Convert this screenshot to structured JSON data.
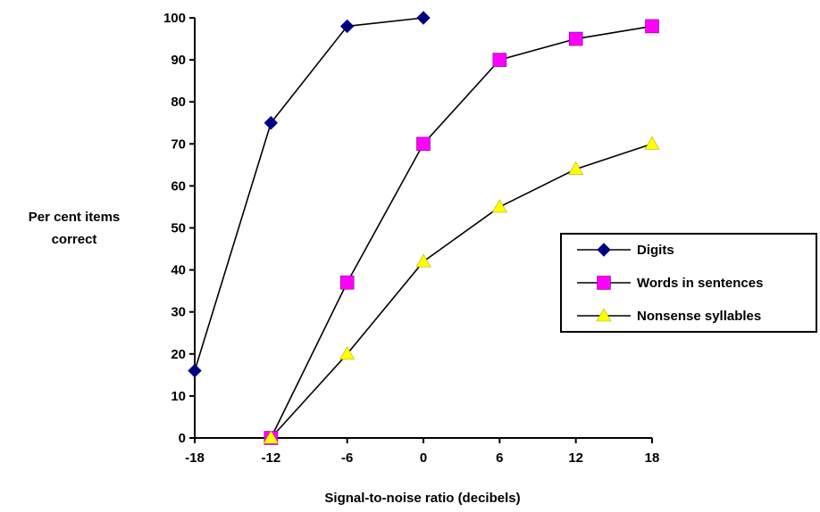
{
  "chart_data": {
    "type": "line",
    "title": "",
    "xlabel": "Signal-to-noise ratio (decibels)",
    "ylabel_lines": [
      "Per cent items",
      "correct"
    ],
    "x": [
      -18,
      -12,
      -6,
      0,
      6,
      12,
      18
    ],
    "x_tick_labels": [
      "-18",
      "-12",
      "-6",
      "0",
      "6",
      "12",
      "18"
    ],
    "y_ticks": [
      0,
      10,
      20,
      30,
      40,
      50,
      60,
      70,
      80,
      90,
      100
    ],
    "y_tick_labels": [
      "0",
      "10",
      "20",
      "30",
      "40",
      "50",
      "60",
      "70",
      "80",
      "90",
      "100"
    ],
    "xlim": [
      -18,
      18
    ],
    "ylim": [
      0,
      100
    ],
    "grid": false,
    "legend_position": "right",
    "series": [
      {
        "name": "Digits",
        "marker": "diamond",
        "color": "#000080",
        "points": [
          [
            -18,
            16
          ],
          [
            -12,
            75
          ],
          [
            -6,
            98
          ],
          [
            0,
            100
          ]
        ]
      },
      {
        "name": "Words in sentences",
        "marker": "square",
        "color": "#FF00FF",
        "points": [
          [
            -12,
            0
          ],
          [
            -6,
            37
          ],
          [
            0,
            70
          ],
          [
            6,
            90
          ],
          [
            12,
            95
          ],
          [
            18,
            98
          ]
        ]
      },
      {
        "name": "Nonsense syllables",
        "marker": "triangle",
        "color": "#FFFF00",
        "points": [
          [
            -12,
            0
          ],
          [
            -6,
            20
          ],
          [
            0,
            42
          ],
          [
            6,
            55
          ],
          [
            12,
            64
          ],
          [
            18,
            70
          ]
        ]
      }
    ]
  }
}
